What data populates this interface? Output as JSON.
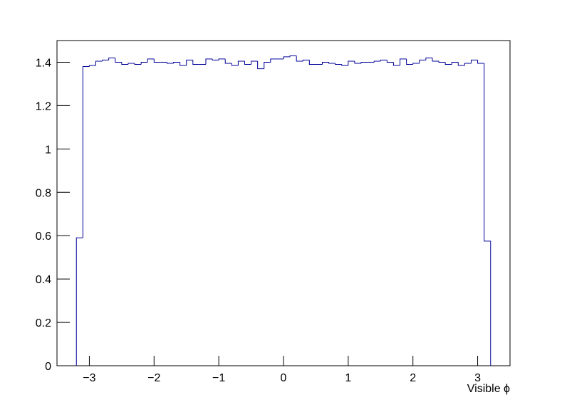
{
  "chart_data": {
    "type": "histogram",
    "x_label": "Visible ϕ",
    "color": "#000099",
    "bins": [
      -3.2,
      -3.1,
      -3.0,
      -2.9,
      -2.8,
      -2.7,
      -2.6,
      -2.5,
      -2.4,
      -2.3,
      -2.2,
      -2.1,
      -2.0,
      -1.9,
      -1.8,
      -1.7,
      -1.6,
      -1.5,
      -1.4,
      -1.3,
      -1.2,
      -1.1,
      -1.0,
      -0.9,
      -0.8,
      -0.7,
      -0.6,
      -0.5,
      -0.4,
      -0.3,
      -0.2,
      -0.1,
      0.0,
      0.1,
      0.2,
      0.3,
      0.4,
      0.5,
      0.6,
      0.7,
      0.8,
      0.9,
      1.0,
      1.1,
      1.2,
      1.3,
      1.4,
      1.5,
      1.6,
      1.7,
      1.8,
      1.9,
      2.0,
      2.1,
      2.2,
      2.3,
      2.4,
      2.5,
      2.6,
      2.7,
      2.8,
      2.9,
      3.0,
      3.1,
      3.2
    ],
    "values": [
      0.59,
      1.38,
      1.385,
      1.405,
      1.41,
      1.42,
      1.4,
      1.39,
      1.395,
      1.39,
      1.4,
      1.415,
      1.4,
      1.4,
      1.395,
      1.4,
      1.385,
      1.41,
      1.39,
      1.39,
      1.415,
      1.41,
      1.415,
      1.395,
      1.385,
      1.405,
      1.39,
      1.405,
      1.37,
      1.4,
      1.415,
      1.415,
      1.425,
      1.43,
      1.405,
      1.41,
      1.39,
      1.39,
      1.4,
      1.395,
      1.39,
      1.385,
      1.405,
      1.395,
      1.4,
      1.4,
      1.405,
      1.41,
      1.4,
      1.385,
      1.415,
      1.39,
      1.395,
      1.41,
      1.42,
      1.405,
      1.4,
      1.39,
      1.4,
      1.385,
      1.395,
      1.41,
      1.395,
      0.575
    ],
    "xlim": [
      -3.5,
      3.5
    ],
    "ylim": [
      0,
      1.5
    ],
    "xticks": [
      {
        "value": -3,
        "label": "−3"
      },
      {
        "value": -2,
        "label": "−2"
      },
      {
        "value": -1,
        "label": "−1"
      },
      0,
      1,
      2,
      3
    ],
    "yticks": [
      0,
      0.2,
      0.4,
      0.6,
      0.8,
      1,
      1.2,
      1.4
    ]
  }
}
